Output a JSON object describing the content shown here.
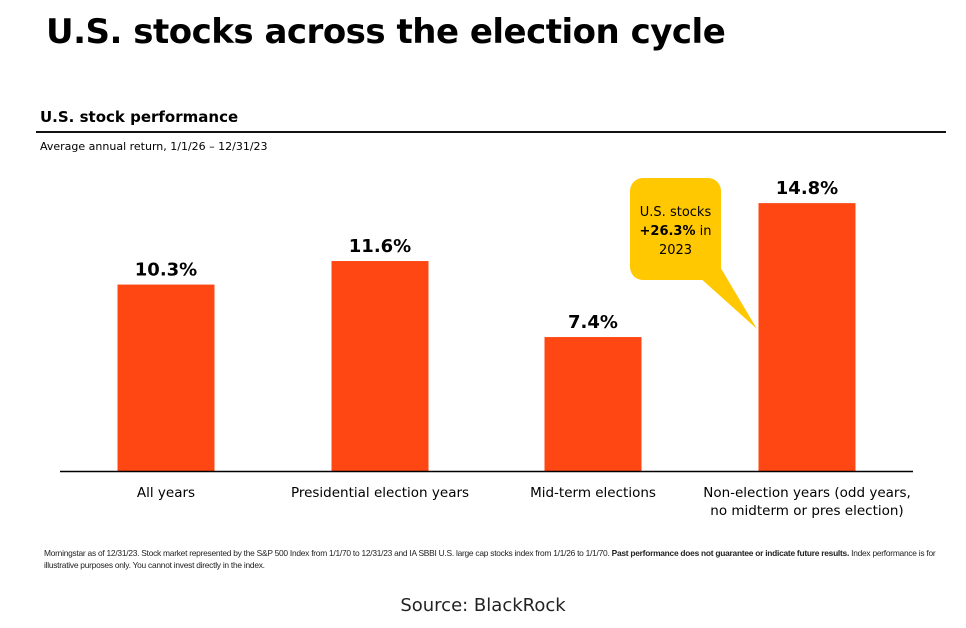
{
  "page": {
    "title": "U.S. stocks across the election cycle",
    "section_title": "U.S. stock performance",
    "subtitle": "Average annual return, 1/1/26 – 12/31/23",
    "footnote_part1": "Morningstar as of 12/31/23. Stock market represented by the S&P 500 Index from 1/1/70 to 12/31/23 and IA SBBI U.S. large cap stocks index from 1/1/26 to 1/1/70. ",
    "footnote_bold": "Past performance does not guarantee or indicate future results.",
    "footnote_part2": " Index performance is for illustrative purposes only. You cannot invest directly in the index.",
    "source": "Source: BlackRock"
  },
  "chart_data": {
    "type": "bar",
    "title": "U.S. stock performance",
    "subtitle": "Average annual return, 1/1/26 – 12/31/23",
    "categories": [
      [
        "All years"
      ],
      [
        "Presidential election years"
      ],
      [
        "Mid-term elections"
      ],
      [
        "Non-election years (odd years,",
        "no midterm or pres election)"
      ]
    ],
    "values": [
      10.3,
      11.6,
      7.4,
      14.8
    ],
    "value_labels": [
      "10.3%",
      "11.6%",
      "7.4%",
      "14.8%"
    ],
    "unit": "%",
    "ylim": [
      0,
      15
    ],
    "grid": false,
    "legend": "none",
    "colors": {
      "bar": "#FF4713",
      "callout": "#FFC800",
      "axis": "#000000"
    },
    "annotation": {
      "target_category_index": 3,
      "line1": "U.S. stocks",
      "line2_bold": "+26.3%",
      "line2_rest": " in",
      "line3": "2023"
    }
  }
}
